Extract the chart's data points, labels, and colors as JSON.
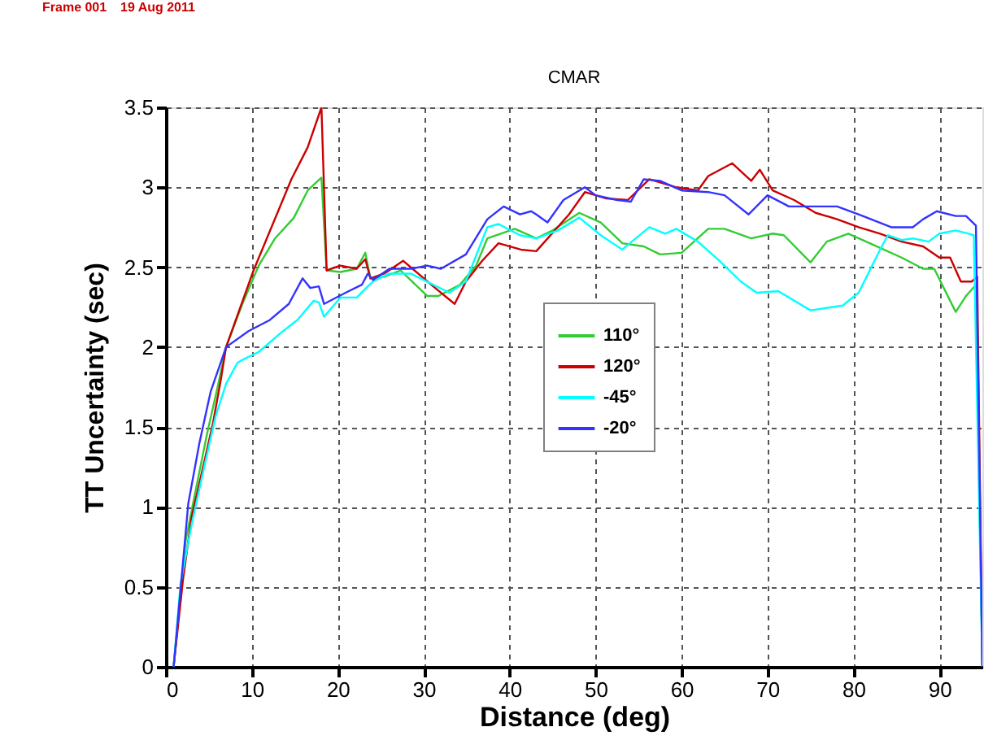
{
  "chart_data": {
    "type": "line",
    "title": "CMAR",
    "xlabel": "Distance (deg)",
    "ylabel": "TT Uncertainty (sec)",
    "annotations": [
      "Frame 001",
      "19 Aug 2011"
    ],
    "xlim": [
      0,
      95
    ],
    "xticks": [
      0,
      10,
      20,
      30,
      40,
      50,
      60,
      70,
      80,
      90
    ],
    "ylim": [
      0,
      3.5
    ],
    "yticks": [
      0,
      0.5,
      1,
      1.5,
      2,
      2.5,
      3,
      3.5
    ],
    "grid": true,
    "legend": "right",
    "marker": "none",
    "line_style": "solid",
    "series": [
      {
        "name": "110°",
        "color": "#33cc33",
        "x": [
          0.9,
          2.3,
          3.3,
          4.8,
          6.1,
          7.0,
          8.9,
          10.8,
          12.7,
          14.9,
          16.5,
          18.1,
          18.7,
          20.3,
          22.2,
          23.2,
          23.8,
          25.4,
          27.3,
          30.4,
          31.7,
          34.2,
          36.1,
          37.4,
          40.6,
          43.1,
          45,
          48.1,
          50.6,
          53.1,
          55.6,
          57.5,
          60,
          63.1,
          65,
          68.1,
          70.6,
          71.9,
          75,
          76.9,
          79.4,
          81.9,
          85.6,
          88.1,
          89.4,
          91.9,
          93.1,
          94.25,
          95
        ],
        "values": [
          0,
          0.79,
          1.06,
          1.46,
          1.77,
          2.0,
          2.27,
          2.51,
          2.68,
          2.81,
          2.98,
          3.06,
          2.48,
          2.47,
          2.49,
          2.59,
          2.43,
          2.44,
          2.48,
          2.32,
          2.32,
          2.39,
          2.51,
          2.68,
          2.74,
          2.68,
          2.73,
          2.84,
          2.78,
          2.65,
          2.63,
          2.58,
          2.59,
          2.74,
          2.74,
          2.68,
          2.71,
          2.7,
          2.53,
          2.66,
          2.71,
          2.65,
          2.56,
          2.49,
          2.49,
          2.22,
          2.32,
          2.39,
          0
        ]
      },
      {
        "name": "120°",
        "color": "#cc0000",
        "x": [
          0.9,
          2.0,
          3.0,
          4.5,
          5.5,
          6.4,
          7.0,
          10.2,
          14.6,
          16.5,
          18.1,
          18.7,
          20.3,
          22.2,
          23.2,
          23.8,
          25.4,
          27.6,
          29.8,
          31.1,
          33.6,
          34.9,
          36.8,
          38.7,
          41.3,
          43.1,
          46.9,
          48.75,
          51.25,
          53.75,
          56.25,
          59.4,
          61.9,
          63.1,
          65.9,
          68.1,
          69.1,
          70.6,
          73.1,
          75.6,
          78.1,
          80.6,
          83.1,
          85.6,
          88.1,
          90,
          91.25,
          92.5,
          93.75,
          94.4,
          95
        ],
        "values": [
          0,
          0.55,
          0.94,
          1.29,
          1.53,
          1.8,
          2.0,
          2.48,
          3.05,
          3.25,
          3.5,
          2.48,
          2.51,
          2.49,
          2.55,
          2.43,
          2.46,
          2.54,
          2.44,
          2.38,
          2.27,
          2.41,
          2.54,
          2.65,
          2.61,
          2.6,
          2.83,
          2.97,
          2.93,
          2.92,
          3.05,
          3.0,
          2.98,
          3.07,
          3.15,
          3.04,
          3.11,
          2.98,
          2.92,
          2.84,
          2.8,
          2.75,
          2.71,
          2.66,
          2.63,
          2.56,
          2.56,
          2.41,
          2.41,
          2.44,
          0
        ]
      },
      {
        "name": "-45°",
        "color": "#00ffff",
        "x": [
          0.9,
          1.7,
          3.0,
          4.5,
          5.8,
          7.0,
          8.3,
          8.9,
          10.8,
          13.4,
          15.3,
          17.2,
          17.8,
          18.4,
          20.3,
          22.2,
          23.5,
          24.1,
          26.0,
          28.5,
          31.1,
          33.0,
          34.9,
          37.4,
          38.7,
          41.2,
          43.1,
          45.6,
          48.1,
          50.6,
          53.1,
          56.25,
          58.1,
          59.4,
          61.9,
          64.4,
          66.9,
          68.75,
          71.25,
          75,
          78.75,
          80.6,
          83.1,
          84,
          85.6,
          86.9,
          88.75,
          90,
          91.9,
          93.4,
          94,
          95
        ],
        "values": [
          0,
          0.52,
          0.89,
          1.26,
          1.57,
          1.77,
          1.9,
          1.92,
          1.97,
          2.09,
          2.17,
          2.29,
          2.28,
          2.19,
          2.31,
          2.31,
          2.38,
          2.41,
          2.46,
          2.46,
          2.39,
          2.34,
          2.41,
          2.75,
          2.77,
          2.7,
          2.68,
          2.73,
          2.81,
          2.7,
          2.61,
          2.75,
          2.71,
          2.74,
          2.66,
          2.54,
          2.41,
          2.34,
          2.35,
          2.23,
          2.26,
          2.34,
          2.61,
          2.7,
          2.67,
          2.68,
          2.66,
          2.71,
          2.73,
          2.71,
          2.7,
          0
        ]
      },
      {
        "name": "-20°",
        "color": "#3333ff",
        "x": [
          0.9,
          2.6,
          3.9,
          5.2,
          7.0,
          9.6,
          12.1,
          14.3,
          15.9,
          16.8,
          17.8,
          18.4,
          20.9,
          22.8,
          23.5,
          24.1,
          26.0,
          28.5,
          30.4,
          32.0,
          34.9,
          37.4,
          39.3,
          41.2,
          42.5,
          43.1,
          44.4,
          46.25,
          48.75,
          50,
          52.5,
          54.1,
          55.6,
          57.5,
          60,
          63.1,
          65,
          67.8,
          70,
          72.5,
          75.6,
          78.1,
          80.6,
          84.4,
          86.9,
          88.1,
          89.7,
          91.9,
          93.1,
          94.25,
          95
        ],
        "values": [
          0,
          1.02,
          1.4,
          1.72,
          2.0,
          2.1,
          2.17,
          2.27,
          2.43,
          2.37,
          2.38,
          2.27,
          2.34,
          2.39,
          2.46,
          2.42,
          2.49,
          2.49,
          2.51,
          2.49,
          2.58,
          2.8,
          2.88,
          2.83,
          2.85,
          2.83,
          2.78,
          2.92,
          3.0,
          2.95,
          2.92,
          2.91,
          3.05,
          3.04,
          2.98,
          2.97,
          2.95,
          2.83,
          2.95,
          2.88,
          2.88,
          2.88,
          2.83,
          2.75,
          2.75,
          2.8,
          2.85,
          2.82,
          2.82,
          2.76,
          0
        ]
      }
    ]
  }
}
